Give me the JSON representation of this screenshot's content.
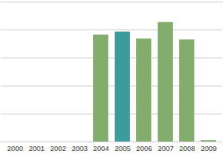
{
  "chart_data": {
    "type": "bar",
    "categories": [
      "2000",
      "2001",
      "2002",
      "2003",
      "2004",
      "2005",
      "2006",
      "2007",
      "2008",
      "2009"
    ],
    "values": [
      0,
      0,
      0,
      0,
      3.82,
      3.93,
      3.68,
      4.27,
      3.65,
      0.05
    ],
    "colors": [
      "#82ad6c",
      "#82ad6c",
      "#82ad6c",
      "#82ad6c",
      "#82ad6c",
      "#3b9c9b",
      "#82ad6c",
      "#82ad6c",
      "#82ad6c",
      "#82ad6c"
    ],
    "ylim": [
      0,
      5
    ],
    "yticks": [
      0,
      1,
      2,
      3,
      4,
      5
    ],
    "grid": true,
    "tick_labels": "x"
  }
}
